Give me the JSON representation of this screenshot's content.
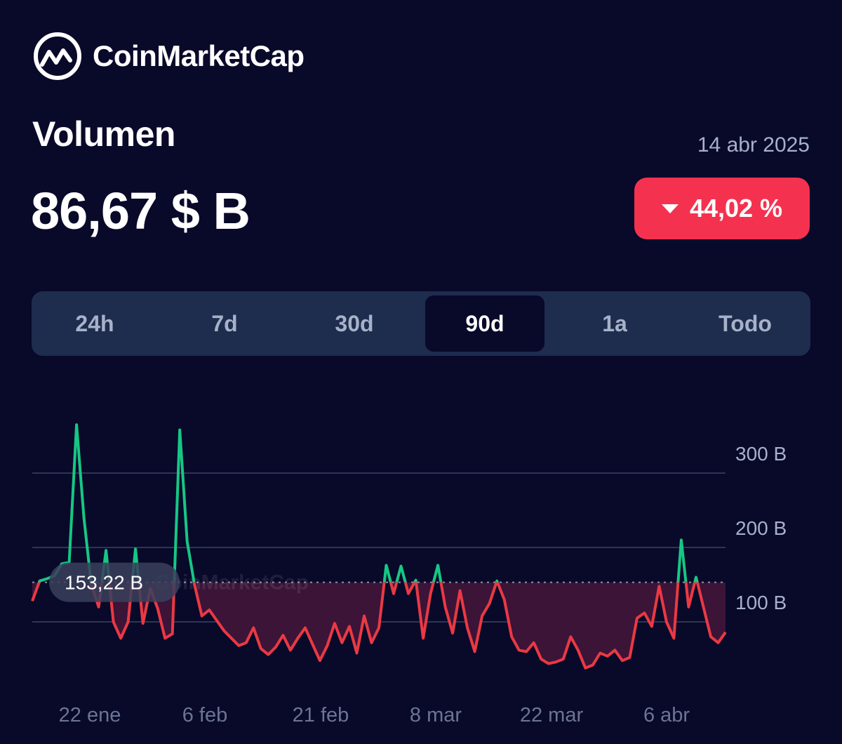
{
  "brand": {
    "name": "CoinMarketCap",
    "logo_icon": "coinmarketcap-logo-icon"
  },
  "header": {
    "title": "Volumen",
    "date": "14 abr 2025",
    "value": "86,67 $ B",
    "change": {
      "text": "44,02 %",
      "direction": "down",
      "color": "#f4324f"
    }
  },
  "tabs": [
    {
      "label": "24h",
      "active": false
    },
    {
      "label": "7d",
      "active": false
    },
    {
      "label": "30d",
      "active": false
    },
    {
      "label": "90d",
      "active": true
    },
    {
      "label": "1a",
      "active": false
    },
    {
      "label": "Todo",
      "active": false
    }
  ],
  "chart_data": {
    "type": "area",
    "title": "",
    "xlabel": "",
    "ylabel": "",
    "y_tick_labels": [
      "300 B",
      "200 B",
      "100 B"
    ],
    "y_ticks": [
      300,
      200,
      100
    ],
    "ylim": [
      0,
      370
    ],
    "x_tick_labels": [
      "22 ene",
      "6 feb",
      "21 feb",
      "8 mar",
      "22 mar",
      "6 abr"
    ],
    "baseline": {
      "value": 153.22,
      "label": "153,22 B"
    },
    "colors": {
      "above": "#16c784",
      "below": "#ea3943",
      "grid": "#2c3652",
      "fill_below": "#3b1438"
    },
    "watermark": "CoinMarketCap",
    "x_start": "2025-01-14",
    "x_end": "2025-04-14",
    "series": [
      {
        "values": [
          128,
          155,
          158,
          162,
          178,
          180,
          365,
          240,
          150,
          120,
          196,
          100,
          78,
          100,
          198,
          98,
          145,
          118,
          78,
          84,
          358,
          208,
          150,
          108,
          116,
          102,
          88,
          78,
          68,
          72,
          92,
          64,
          56,
          66,
          82,
          62,
          78,
          92,
          70,
          48,
          68,
          98,
          72,
          94,
          58,
          108,
          72,
          92,
          176,
          138,
          175,
          138,
          156,
          78,
          138,
          176,
          120,
          85,
          142,
          92,
          60,
          108,
          125,
          155,
          130,
          80,
          62,
          60,
          72,
          50,
          44,
          46,
          50,
          80,
          62,
          38,
          42,
          58,
          54,
          62,
          48,
          52,
          105,
          112,
          94,
          148,
          100,
          78,
          210,
          120,
          160,
          120,
          80,
          72,
          86
        ]
      }
    ]
  }
}
